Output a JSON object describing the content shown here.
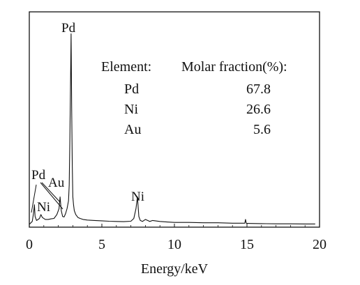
{
  "chart_data": {
    "type": "line",
    "title": "",
    "xlabel": "Energy/keV",
    "ylabel": "",
    "xlim": [
      0,
      20
    ],
    "ylim": [
      0,
      100
    ],
    "x_ticks": [
      "0",
      "5",
      "10",
      "15",
      "20"
    ],
    "grid": false,
    "legend": "none",
    "series": [
      {
        "color": "#111111",
        "x": [
          0.0,
          0.2,
          0.3,
          0.35,
          0.4,
          0.5,
          0.7,
          0.8,
          0.9,
          1.1,
          1.3,
          1.5,
          1.7,
          1.9,
          2.05,
          2.12,
          2.2,
          2.3,
          2.4,
          2.5,
          2.6,
          2.7,
          2.75,
          2.8,
          2.84,
          2.88,
          2.92,
          2.96,
          3.0,
          3.05,
          3.1,
          3.2,
          3.35,
          3.5,
          3.7,
          4.0,
          4.5,
          5.0,
          5.5,
          6.0,
          6.5,
          7.0,
          7.2,
          7.35,
          7.45,
          7.5,
          7.55,
          7.65,
          7.8,
          8.0,
          8.3,
          8.5,
          9.0,
          9.5,
          10.0,
          11.0,
          12.0,
          13.0,
          14.0,
          14.85,
          14.9,
          14.95,
          15.0,
          16.0,
          17.0,
          18.0,
          19.0,
          19.7
        ],
        "y": [
          0.0,
          1.5,
          6.0,
          10.0,
          4.0,
          2.0,
          3.0,
          5.0,
          3.5,
          2.5,
          2.5,
          2.8,
          3.0,
          5.0,
          8.0,
          14.0,
          7.0,
          4.0,
          3.8,
          5.5,
          8.0,
          12.0,
          20.0,
          45.0,
          72.0,
          97.0,
          60.0,
          30.0,
          14.0,
          10.0,
          7.0,
          5.0,
          3.5,
          3.0,
          2.5,
          2.2,
          2.0,
          1.8,
          1.6,
          1.5,
          1.4,
          1.6,
          3.0,
          8.0,
          14.0,
          9.0,
          4.0,
          2.0,
          1.5,
          2.5,
          1.5,
          2.0,
          1.5,
          1.2,
          1.0,
          1.0,
          0.8,
          0.8,
          0.6,
          0.6,
          2.5,
          0.6,
          0.5,
          0.4,
          0.3,
          0.3,
          0.2,
          0.2
        ]
      }
    ],
    "peak_labels": [
      {
        "text": "Pd",
        "x": 2.9
      },
      {
        "text": "Ni",
        "x": 7.5
      },
      {
        "text": "Au",
        "x": 2.12
      },
      {
        "text": "Pd",
        "x": 0.35
      },
      {
        "text": "Ni",
        "x": 0.8
      }
    ],
    "annotation_table": {
      "headers": [
        "Element:",
        "Molar fraction(%):"
      ],
      "rows": [
        {
          "element": "Pd",
          "fraction": "67.8"
        },
        {
          "element": "Ni",
          "fraction": "26.6"
        },
        {
          "element": "Au",
          "fraction": "5.6"
        }
      ]
    }
  }
}
